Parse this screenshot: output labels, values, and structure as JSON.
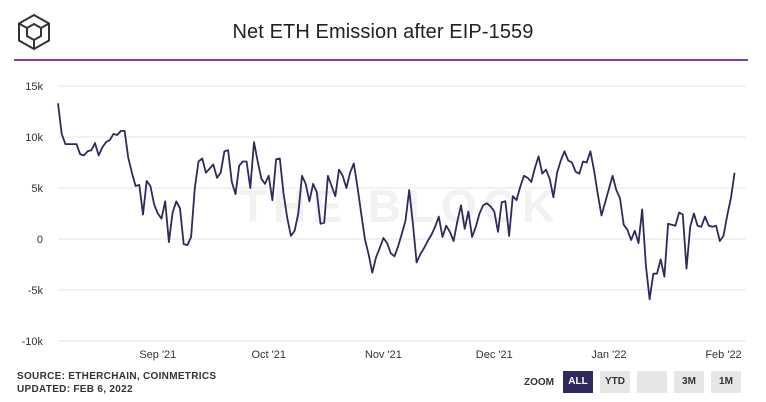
{
  "header": {
    "title": "Net ETH Emission after EIP-1559"
  },
  "watermark": "THE BLOCK",
  "footer": {
    "source": "SOURCE: ETHERCHAIN, COINMETRICS",
    "updated": "UPDATED: FEB 6, 2022"
  },
  "zoom": {
    "label": "ZOOM",
    "buttons": [
      "ALL",
      "YTD",
      "",
      "3M",
      "1M"
    ],
    "selected": "ALL"
  },
  "colors": {
    "line": "#2f2a5e",
    "accent": "#8a3fa8",
    "active_button": "#2f2a5e"
  },
  "chart_data": {
    "type": "line",
    "title": "Net ETH Emission after EIP-1559",
    "xlabel": "",
    "ylabel": "",
    "ylim": [
      -10000,
      15000
    ],
    "yticks": [
      {
        "value": 15000,
        "label": "15k"
      },
      {
        "value": 10000,
        "label": "10k"
      },
      {
        "value": 5000,
        "label": "5k"
      },
      {
        "value": 0,
        "label": "0"
      },
      {
        "value": -5000,
        "label": "-5k"
      },
      {
        "value": -10000,
        "label": "-10k"
      }
    ],
    "xlim": [
      "2021-08-05",
      "2022-02-06"
    ],
    "xticks": [
      {
        "value": "2021-09-01",
        "label": "Sep '21"
      },
      {
        "value": "2021-10-01",
        "label": "Oct '21"
      },
      {
        "value": "2021-11-01",
        "label": "Nov '21"
      },
      {
        "value": "2021-12-01",
        "label": "Dec '21"
      },
      {
        "value": "2022-01-01",
        "label": "Jan '22"
      },
      {
        "value": "2022-02-01",
        "label": "Feb '22"
      }
    ],
    "grid": true,
    "series": [
      {
        "values": [
          [
            "2021-08-05",
            13300
          ],
          [
            "2021-08-06",
            10300
          ],
          [
            "2021-08-07",
            9300
          ],
          [
            "2021-08-08",
            9300
          ],
          [
            "2021-08-09",
            9300
          ],
          [
            "2021-08-10",
            9300
          ],
          [
            "2021-08-11",
            8300
          ],
          [
            "2021-08-12",
            8200
          ],
          [
            "2021-08-13",
            8600
          ],
          [
            "2021-08-14",
            8700
          ],
          [
            "2021-08-15",
            9400
          ],
          [
            "2021-08-16",
            8200
          ],
          [
            "2021-08-17",
            9000
          ],
          [
            "2021-08-18",
            9500
          ],
          [
            "2021-08-19",
            9700
          ],
          [
            "2021-08-20",
            10300
          ],
          [
            "2021-08-21",
            10200
          ],
          [
            "2021-08-22",
            10600
          ],
          [
            "2021-08-23",
            10600
          ],
          [
            "2021-08-24",
            8000
          ],
          [
            "2021-08-25",
            6500
          ],
          [
            "2021-08-26",
            5200
          ],
          [
            "2021-08-27",
            5300
          ],
          [
            "2021-08-28",
            2400
          ],
          [
            "2021-08-29",
            5700
          ],
          [
            "2021-08-30",
            5200
          ],
          [
            "2021-08-31",
            3400
          ],
          [
            "2021-09-01",
            2500
          ],
          [
            "2021-09-02",
            2000
          ],
          [
            "2021-09-03",
            3700
          ],
          [
            "2021-09-04",
            -300
          ],
          [
            "2021-09-05",
            2600
          ],
          [
            "2021-09-06",
            3700
          ],
          [
            "2021-09-07",
            3000
          ],
          [
            "2021-09-08",
            -500
          ],
          [
            "2021-09-09",
            -600
          ],
          [
            "2021-09-10",
            200
          ],
          [
            "2021-09-11",
            5000
          ],
          [
            "2021-09-12",
            7600
          ],
          [
            "2021-09-13",
            7900
          ],
          [
            "2021-09-14",
            6500
          ],
          [
            "2021-09-15",
            6900
          ],
          [
            "2021-09-16",
            7300
          ],
          [
            "2021-09-17",
            6000
          ],
          [
            "2021-09-18",
            6500
          ],
          [
            "2021-09-19",
            8600
          ],
          [
            "2021-09-20",
            8700
          ],
          [
            "2021-09-21",
            5600
          ],
          [
            "2021-09-22",
            4400
          ],
          [
            "2021-09-23",
            7200
          ],
          [
            "2021-09-24",
            7600
          ],
          [
            "2021-09-25",
            7600
          ],
          [
            "2021-09-26",
            5000
          ],
          [
            "2021-09-27",
            9500
          ],
          [
            "2021-09-28",
            7600
          ],
          [
            "2021-09-29",
            5900
          ],
          [
            "2021-09-30",
            5400
          ],
          [
            "2021-10-01",
            6200
          ],
          [
            "2021-10-02",
            3800
          ],
          [
            "2021-10-03",
            7800
          ],
          [
            "2021-10-04",
            7900
          ],
          [
            "2021-10-05",
            4500
          ],
          [
            "2021-10-06",
            2100
          ],
          [
            "2021-10-07",
            300
          ],
          [
            "2021-10-08",
            800
          ],
          [
            "2021-10-09",
            2500
          ],
          [
            "2021-10-10",
            6200
          ],
          [
            "2021-10-11",
            5400
          ],
          [
            "2021-10-12",
            3700
          ],
          [
            "2021-10-13",
            5400
          ],
          [
            "2021-10-14",
            4600
          ],
          [
            "2021-10-15",
            1500
          ],
          [
            "2021-10-16",
            1600
          ],
          [
            "2021-10-17",
            6200
          ],
          [
            "2021-10-18",
            5200
          ],
          [
            "2021-10-19",
            4200
          ],
          [
            "2021-10-20",
            6800
          ],
          [
            "2021-10-21",
            6200
          ],
          [
            "2021-10-22",
            5000
          ],
          [
            "2021-10-23",
            6500
          ],
          [
            "2021-10-24",
            7400
          ],
          [
            "2021-10-25",
            5100
          ],
          [
            "2021-10-26",
            2500
          ],
          [
            "2021-10-27",
            0
          ],
          [
            "2021-10-28",
            -1500
          ],
          [
            "2021-10-29",
            -3300
          ],
          [
            "2021-10-30",
            -1800
          ],
          [
            "2021-10-31",
            -900
          ],
          [
            "2021-11-01",
            100
          ],
          [
            "2021-11-02",
            -400
          ],
          [
            "2021-11-03",
            -1400
          ],
          [
            "2021-11-04",
            -1700
          ],
          [
            "2021-11-05",
            -700
          ],
          [
            "2021-11-06",
            500
          ],
          [
            "2021-11-07",
            1800
          ],
          [
            "2021-11-08",
            4800
          ],
          [
            "2021-11-09",
            1500
          ],
          [
            "2021-11-10",
            -2300
          ],
          [
            "2021-11-11",
            -1500
          ],
          [
            "2021-11-12",
            -900
          ],
          [
            "2021-11-13",
            -200
          ],
          [
            "2021-11-14",
            400
          ],
          [
            "2021-11-15",
            1200
          ],
          [
            "2021-11-16",
            2200
          ],
          [
            "2021-11-17",
            200
          ],
          [
            "2021-11-18",
            1300
          ],
          [
            "2021-11-19",
            700
          ],
          [
            "2021-11-20",
            -200
          ],
          [
            "2021-11-21",
            1700
          ],
          [
            "2021-11-22",
            3300
          ],
          [
            "2021-11-23",
            1000
          ],
          [
            "2021-11-24",
            2700
          ],
          [
            "2021-11-25",
            200
          ],
          [
            "2021-11-26",
            1200
          ],
          [
            "2021-11-27",
            2500
          ],
          [
            "2021-11-28",
            3300
          ],
          [
            "2021-11-29",
            3500
          ],
          [
            "2021-11-30",
            3200
          ],
          [
            "2021-12-01",
            2700
          ],
          [
            "2021-12-02",
            700
          ],
          [
            "2021-12-03",
            3600
          ],
          [
            "2021-12-04",
            3700
          ],
          [
            "2021-12-05",
            300
          ],
          [
            "2021-12-06",
            4200
          ],
          [
            "2021-12-07",
            3800
          ],
          [
            "2021-12-08",
            5100
          ],
          [
            "2021-12-09",
            6200
          ],
          [
            "2021-12-10",
            6000
          ],
          [
            "2021-12-11",
            5600
          ],
          [
            "2021-12-12",
            7000
          ],
          [
            "2021-12-13",
            8100
          ],
          [
            "2021-12-14",
            6400
          ],
          [
            "2021-12-15",
            6800
          ],
          [
            "2021-12-16",
            5900
          ],
          [
            "2021-12-17",
            4100
          ],
          [
            "2021-12-18",
            6500
          ],
          [
            "2021-12-19",
            7700
          ],
          [
            "2021-12-20",
            8600
          ],
          [
            "2021-12-21",
            7700
          ],
          [
            "2021-12-22",
            7500
          ],
          [
            "2021-12-23",
            6600
          ],
          [
            "2021-12-24",
            6400
          ],
          [
            "2021-12-25",
            7600
          ],
          [
            "2021-12-26",
            7500
          ],
          [
            "2021-12-27",
            8600
          ],
          [
            "2021-12-28",
            6700
          ],
          [
            "2021-12-29",
            4400
          ],
          [
            "2021-12-30",
            2300
          ],
          [
            "2021-12-31",
            3600
          ],
          [
            "2022-01-01",
            4900
          ],
          [
            "2022-01-02",
            6200
          ],
          [
            "2022-01-03",
            4800
          ],
          [
            "2022-01-04",
            4000
          ],
          [
            "2022-01-05",
            1400
          ],
          [
            "2022-01-06",
            900
          ],
          [
            "2022-01-07",
            -100
          ],
          [
            "2022-01-08",
            800
          ],
          [
            "2022-01-09",
            -400
          ],
          [
            "2022-01-10",
            2900
          ],
          [
            "2022-01-11",
            -2600
          ],
          [
            "2022-01-12",
            -5900
          ],
          [
            "2022-01-13",
            -3400
          ],
          [
            "2022-01-14",
            -3400
          ],
          [
            "2022-01-15",
            -2000
          ],
          [
            "2022-01-16",
            -3700
          ],
          [
            "2022-01-17",
            1500
          ],
          [
            "2022-01-18",
            1400
          ],
          [
            "2022-01-19",
            1300
          ],
          [
            "2022-01-20",
            2600
          ],
          [
            "2022-01-21",
            2400
          ],
          [
            "2022-01-22",
            -2900
          ],
          [
            "2022-01-23",
            1200
          ],
          [
            "2022-01-24",
            2500
          ],
          [
            "2022-01-25",
            1300
          ],
          [
            "2022-01-26",
            1200
          ],
          [
            "2022-01-27",
            2200
          ],
          [
            "2022-01-28",
            1300
          ],
          [
            "2022-01-29",
            1200
          ],
          [
            "2022-01-30",
            1300
          ],
          [
            "2022-01-31",
            -200
          ],
          [
            "2022-02-01",
            300
          ],
          [
            "2022-02-02",
            2300
          ],
          [
            "2022-02-03",
            4000
          ],
          [
            "2022-02-04",
            6500
          ]
        ]
      }
    ]
  }
}
